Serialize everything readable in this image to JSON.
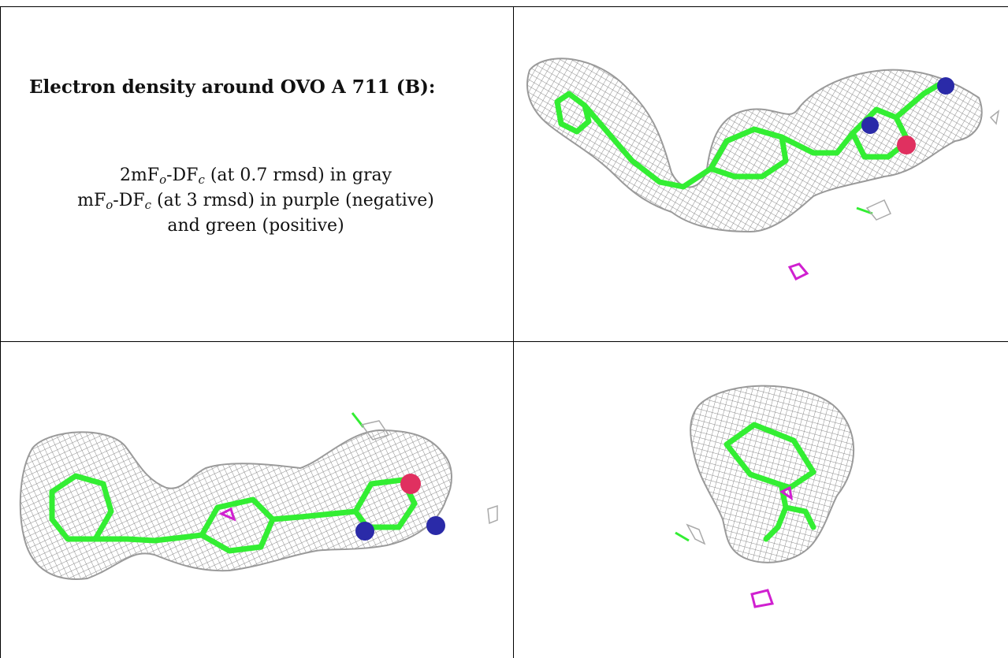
{
  "caption": {
    "title": "Electron density around OVO A 711 (B):",
    "lines": [
      {
        "pre": "2mF",
        "sub1": "o",
        "mid": "-DF",
        "sub2": "c",
        "post": " (at 0.7 rmsd) in gray"
      },
      {
        "pre": "mF",
        "sub1": "o",
        "mid": "-DF",
        "sub2": "c",
        "post": " (at 3 rmsd) in purple (negative)"
      },
      {
        "plain": "and green (positive)"
      }
    ]
  },
  "views": [
    {
      "name": "view-top-right"
    },
    {
      "name": "view-bottom-left"
    },
    {
      "name": "view-bottom-right"
    }
  ],
  "colors": {
    "mesh_gray": "#8a8a8a",
    "carbon_green": "#33ee33",
    "nitrogen_blue": "#2a2aa8",
    "oxygen_red": "#e03060",
    "negative_purple": "#d020d0"
  }
}
